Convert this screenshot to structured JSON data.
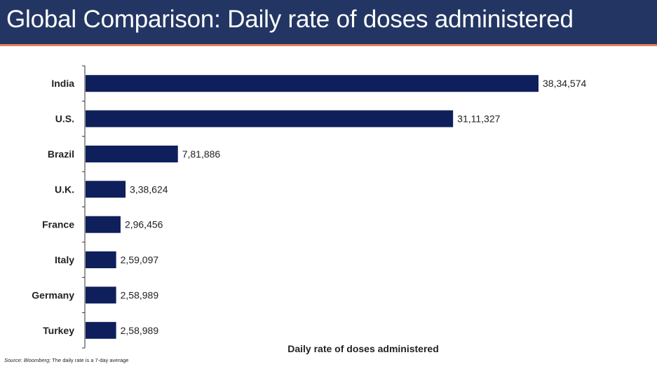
{
  "slide": {
    "title": "Global Comparison: Daily rate of doses administered"
  },
  "chart_data": {
    "type": "bar",
    "orientation": "horizontal",
    "categories": [
      "India",
      "U.S.",
      "Brazil",
      "U.K.",
      "France",
      "Italy",
      "Germany",
      "Turkey"
    ],
    "values": [
      3834574,
      3111327,
      781886,
      338624,
      296456,
      259097,
      258989,
      258989
    ],
    "value_labels": [
      "38,34,574",
      "31,11,327",
      "7,81,886",
      "3,38,624",
      "2,96,456",
      "2,59,097",
      "2,58,989",
      "2,58,989"
    ],
    "xlabel": "Daily rate of doses administered",
    "ylabel": "",
    "xlim": [
      0,
      3834574
    ],
    "bar_color": "#0e1f5b",
    "grid": false,
    "legend": "none"
  },
  "footnote": {
    "source_label": "Source: Bloomberg;",
    "note": "The daily rate is a 7-day average"
  },
  "colors": {
    "title_bar": "#233663",
    "title_rule": "#e2835b",
    "bar": "#0e1f5b"
  }
}
